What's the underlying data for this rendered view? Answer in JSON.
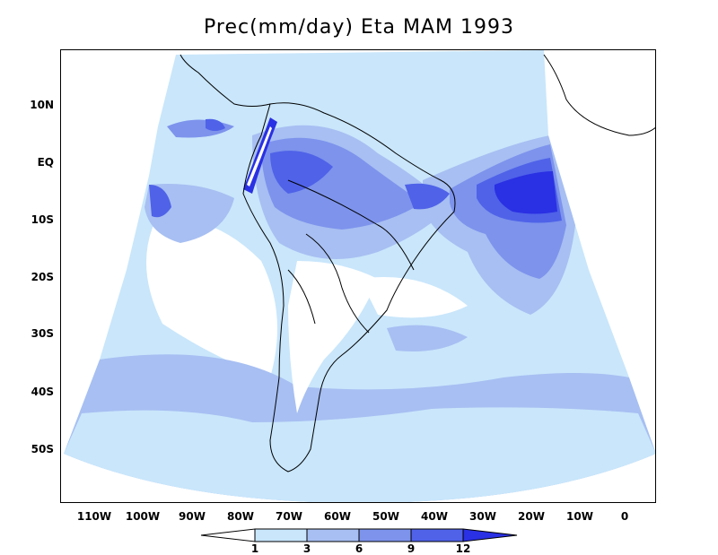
{
  "title": "Prec(mm/day) Eta MAM 1993",
  "lat_labels": [
    "10N",
    "EQ",
    "10S",
    "20S",
    "30S",
    "40S",
    "50S"
  ],
  "lon_labels": [
    "110W",
    "100W",
    "90W",
    "80W",
    "70W",
    "60W",
    "50W",
    "40W",
    "30W",
    "20W",
    "10W",
    "0"
  ],
  "colorbar": {
    "levels": [
      "1",
      "3",
      "6",
      "9",
      "12"
    ],
    "colors": [
      "#ffffff",
      "#c9e6fb",
      "#a7bff2",
      "#7d93ec",
      "#4f62e8",
      "#2a30e3"
    ]
  },
  "colors": {
    "ocean_background": "#ffffff",
    "light": "#c9e6fb",
    "medium": "#a7bff2",
    "darker": "#7d93ec",
    "heavy": "#4f62e8",
    "extreme": "#2a30e3"
  }
}
